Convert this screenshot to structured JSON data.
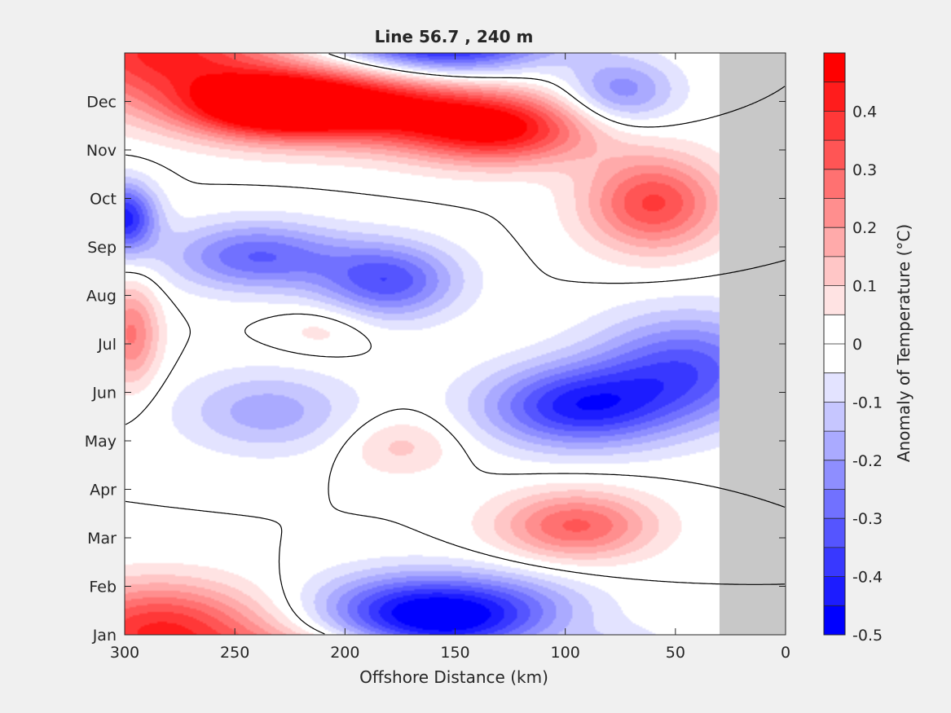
{
  "chart_data": {
    "type": "heatmap",
    "title": "Line 56.7 , 240 m",
    "xlabel": "Offshore Distance (km)",
    "ylabel": "",
    "x_reversed": true,
    "xlim": [
      300,
      0
    ],
    "x_ticks": [
      300,
      250,
      200,
      150,
      100,
      50,
      0
    ],
    "y_ticks": [
      "Jan",
      "Feb",
      "Mar",
      "Apr",
      "May",
      "Jun",
      "Jul",
      "Aug",
      "Sep",
      "Oct",
      "Nov",
      "Dec"
    ],
    "no_data_region_km": [
      30,
      0
    ],
    "no_data_color": "#c8c8c8",
    "colorbar": {
      "label": "Anomaly of Temperature (°C)",
      "min": -0.5,
      "max": 0.5,
      "tick_labels": [
        "0.4",
        "0.3",
        "0.2",
        "0.1",
        "0",
        "-0.1",
        "-0.2",
        "-0.3",
        "-0.4",
        "-0.5"
      ],
      "tick_values": [
        0.4,
        0.3,
        0.2,
        0.1,
        0,
        -0.1,
        -0.2,
        -0.3,
        -0.4,
        -0.5
      ],
      "levels": [
        {
          "from": -0.5,
          "to": -0.45,
          "color": "#0000ff"
        },
        {
          "from": -0.45,
          "to": -0.4,
          "color": "#1c1cff"
        },
        {
          "from": -0.4,
          "to": -0.35,
          "color": "#3838ff"
        },
        {
          "from": -0.35,
          "to": -0.3,
          "color": "#5555ff"
        },
        {
          "from": -0.3,
          "to": -0.25,
          "color": "#7171ff"
        },
        {
          "from": -0.25,
          "to": -0.2,
          "color": "#8e8eff"
        },
        {
          "from": -0.2,
          "to": -0.15,
          "color": "#aaaaff"
        },
        {
          "from": -0.15,
          "to": -0.1,
          "color": "#c6c6ff"
        },
        {
          "from": -0.1,
          "to": -0.05,
          "color": "#e3e3ff"
        },
        {
          "from": -0.05,
          "to": 0,
          "color": "#ffffff"
        },
        {
          "from": 0,
          "to": 0.05,
          "color": "#ffffff"
        },
        {
          "from": 0.05,
          "to": 0.1,
          "color": "#ffe3e3"
        },
        {
          "from": 0.1,
          "to": 0.15,
          "color": "#ffc6c6"
        },
        {
          "from": 0.15,
          "to": 0.2,
          "color": "#ffaaaa"
        },
        {
          "from": 0.2,
          "to": 0.25,
          "color": "#ff8e8e"
        },
        {
          "from": 0.25,
          "to": 0.3,
          "color": "#ff7171"
        },
        {
          "from": 0.3,
          "to": 0.35,
          "color": "#ff5555"
        },
        {
          "from": 0.35,
          "to": 0.4,
          "color": "#ff3838"
        },
        {
          "from": 0.4,
          "to": 0.45,
          "color": "#ff1c1c"
        },
        {
          "from": 0.45,
          "to": 0.5,
          "color": "#ff0000"
        }
      ]
    },
    "features": [
      {
        "kind": "warm",
        "x_km": 190,
        "month": 10.9,
        "amp": 0.46,
        "sx_km": 42,
        "s_month": 0.55
      },
      {
        "kind": "warm",
        "x_km": 235,
        "month": 10.9,
        "amp": 0.42,
        "sx_km": 28,
        "s_month": 0.45
      },
      {
        "kind": "warm",
        "x_km": 130,
        "month": 10.4,
        "amp": 0.42,
        "sx_km": 30,
        "s_month": 0.5
      },
      {
        "kind": "warm",
        "x_km": 280,
        "month": 11.7,
        "amp": 0.28,
        "sx_km": 45,
        "s_month": 0.7
      },
      {
        "kind": "warm",
        "x_km": 60,
        "month": 8.9,
        "amp": 0.36,
        "sx_km": 22,
        "s_month": 0.7
      },
      {
        "kind": "warm",
        "x_km": 297,
        "month": 6.2,
        "amp": 0.26,
        "sx_km": 9,
        "s_month": 0.75
      },
      {
        "kind": "warm",
        "x_km": 210,
        "month": 6.3,
        "amp": 0.08,
        "sx_km": 16,
        "s_month": 0.35
      },
      {
        "kind": "warm",
        "x_km": 175,
        "month": 3.9,
        "amp": 0.12,
        "sx_km": 18,
        "s_month": 0.45
      },
      {
        "kind": "warm",
        "x_km": 95,
        "month": 2.25,
        "amp": 0.31,
        "sx_km": 25,
        "s_month": 0.5
      },
      {
        "kind": "warm",
        "x_km": 285,
        "month": 0.4,
        "amp": 0.2,
        "sx_km": 30,
        "s_month": 0.6
      },
      {
        "kind": "cold",
        "x_km": 300,
        "month": 8.6,
        "amp": -0.42,
        "sx_km": 10,
        "s_month": 0.5
      },
      {
        "kind": "cold",
        "x_km": 240,
        "month": 7.8,
        "amp": -0.3,
        "sx_km": 28,
        "s_month": 0.5
      },
      {
        "kind": "cold",
        "x_km": 180,
        "month": 7.3,
        "amp": -0.33,
        "sx_km": 22,
        "s_month": 0.55
      },
      {
        "kind": "cold",
        "x_km": 75,
        "month": 11.2,
        "amp": -0.24,
        "sx_km": 18,
        "s_month": 0.5
      },
      {
        "kind": "cold",
        "x_km": 150,
        "month": 12.0,
        "amp": -0.2,
        "sx_km": 28,
        "s_month": 0.5
      },
      {
        "kind": "cold",
        "x_km": 95,
        "month": 4.7,
        "amp": -0.4,
        "sx_km": 30,
        "s_month": 0.6
      },
      {
        "kind": "cold",
        "x_km": 45,
        "month": 5.5,
        "amp": -0.32,
        "sx_km": 30,
        "s_month": 0.8
      },
      {
        "kind": "cold",
        "x_km": 235,
        "month": 4.6,
        "amp": -0.18,
        "sx_km": 28,
        "s_month": 0.6
      },
      {
        "kind": "cold",
        "x_km": 175,
        "month": 0.5,
        "amp": -0.34,
        "sx_km": 30,
        "s_month": 0.55
      },
      {
        "kind": "cold",
        "x_km": 130,
        "month": 0.6,
        "amp": -0.22,
        "sx_km": 30,
        "s_month": 0.5
      }
    ]
  }
}
